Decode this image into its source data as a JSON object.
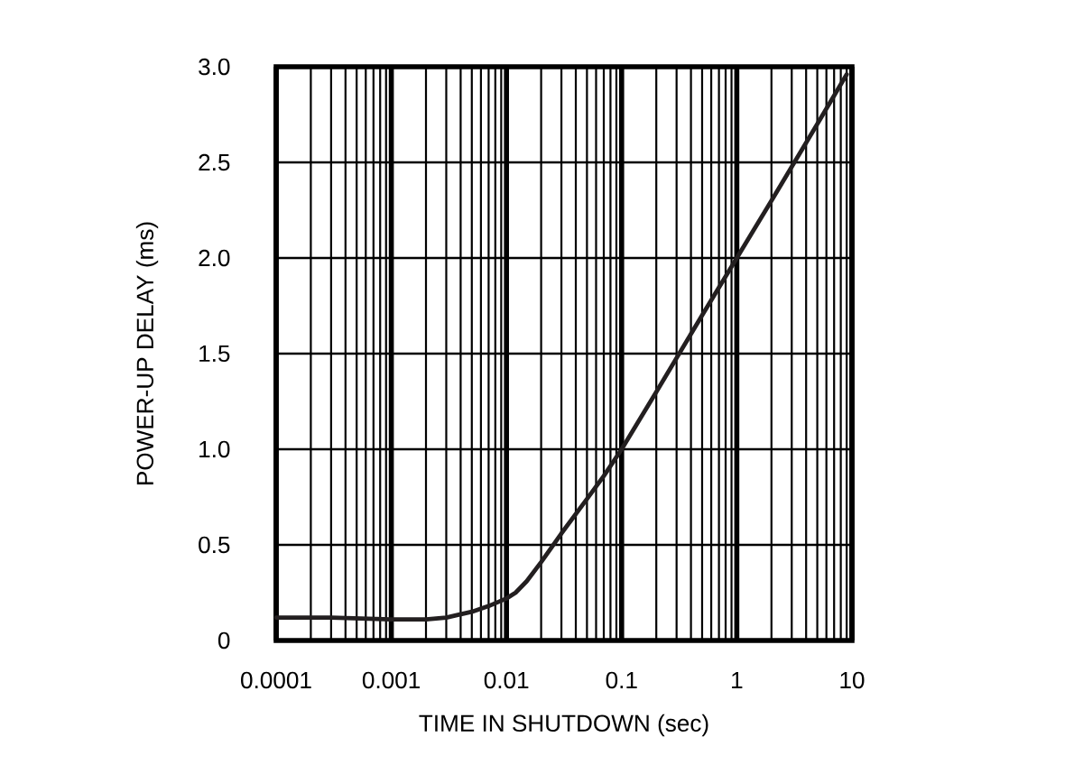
{
  "chart_data": {
    "type": "line",
    "xlabel": "TIME IN SHUTDOWN (sec)",
    "ylabel": "POWER-UP DELAY (ms)",
    "log": "x",
    "x": [
      0.0001,
      0.0003,
      0.001,
      0.002,
      0.003,
      0.005,
      0.007,
      0.01,
      0.012,
      0.015,
      0.02,
      0.03,
      0.05,
      0.07,
      0.1,
      0.2,
      0.5,
      1,
      2,
      5,
      9
    ],
    "values": [
      0.12,
      0.12,
      0.11,
      0.11,
      0.12,
      0.15,
      0.18,
      0.22,
      0.25,
      0.31,
      0.41,
      0.56,
      0.74,
      0.86,
      1.0,
      1.3,
      1.7,
      2.0,
      2.3,
      2.7,
      2.96
    ],
    "color": "#231f20",
    "xlim": [
      0.0001,
      10
    ],
    "ylim": [
      0,
      3
    ],
    "xticks": [
      0.0001,
      0.001,
      0.01,
      0.1,
      1,
      10
    ],
    "yticks": [
      0,
      0.5,
      {
        "value": 1,
        "label": "1.0"
      },
      1.5,
      {
        "value": 2,
        "label": "2.0"
      },
      2.5,
      {
        "value": 3,
        "label": "3.0"
      }
    ],
    "grid": true,
    "marker": "none",
    "line_style": "solid"
  }
}
